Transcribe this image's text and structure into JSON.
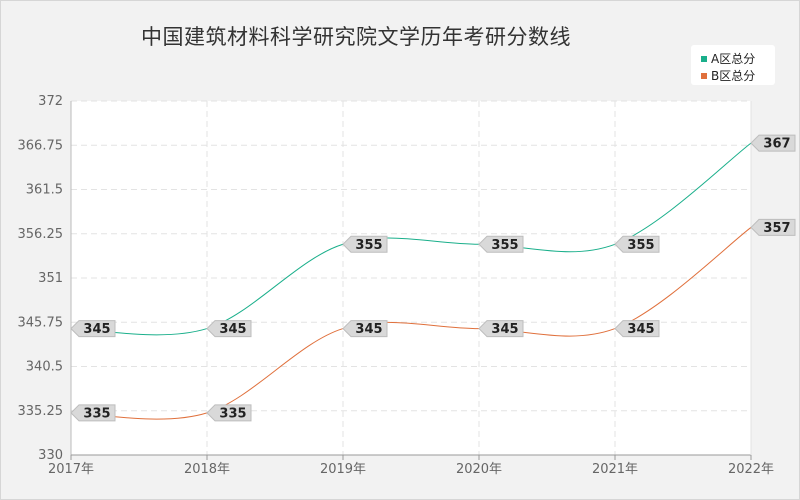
{
  "chart_data": {
    "type": "line",
    "title": "中国建筑材料科学研究院文学历年考研分数线",
    "categories": [
      "2017年",
      "2018年",
      "2019年",
      "2020年",
      "2021年",
      "2022年"
    ],
    "series": [
      {
        "name": "A区总分",
        "color": "#1aaf8b",
        "values": [
          345,
          345,
          355,
          355,
          355,
          367
        ]
      },
      {
        "name": "B区总分",
        "color": "#e0703c",
        "values": [
          335,
          335,
          345,
          345,
          345,
          357
        ]
      }
    ],
    "ylim": [
      330,
      372
    ],
    "yticks": [
      "330",
      "335.25",
      "340.5",
      "345.75",
      "351",
      "356.25",
      "361.5",
      "366.75",
      "372"
    ],
    "grid": true,
    "legend_position": "top-right",
    "smooth": true
  }
}
